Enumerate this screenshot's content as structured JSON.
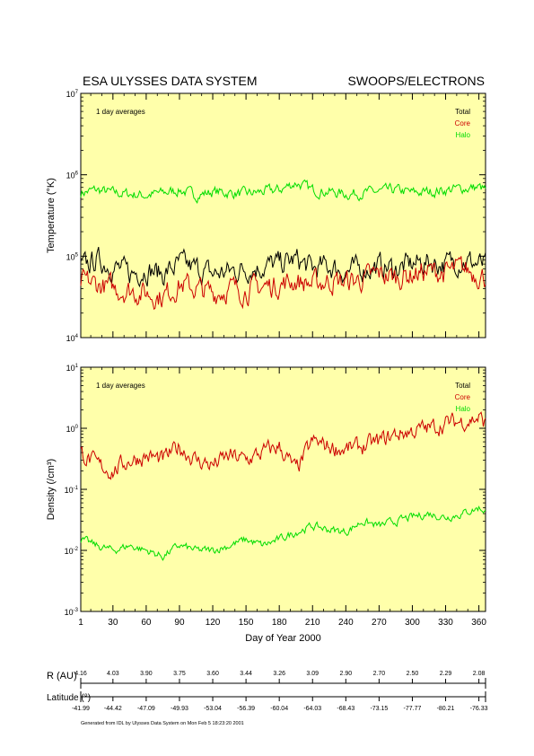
{
  "header": {
    "left": "ESA ULYSSES DATA SYSTEM",
    "right": "SWOOPS/ELECTRONS"
  },
  "chart_data": [
    {
      "type": "line",
      "annotation": "1 day averages",
      "ylabel": "Temperature (°K)",
      "xlabel": "",
      "yscale": "log",
      "ylim": [
        10000,
        10000000
      ],
      "yticks": [
        {
          "base": "10",
          "exp": "4"
        },
        {
          "base": "10",
          "exp": "5"
        },
        {
          "base": "10",
          "exp": "6"
        },
        {
          "base": "10",
          "exp": "7"
        }
      ],
      "xlim": [
        1,
        366
      ],
      "legend": [
        "Total",
        "Core",
        "Halo"
      ],
      "legend_position": "top-right",
      "colors": {
        "Total": "#000000",
        "Core": "#cc0000",
        "Halo": "#00dd00"
      },
      "x": [
        1,
        15,
        30,
        45,
        60,
        75,
        90,
        105,
        120,
        135,
        150,
        165,
        180,
        195,
        210,
        225,
        240,
        255,
        270,
        285,
        300,
        315,
        330,
        345,
        360,
        366
      ],
      "series": [
        {
          "name": "Total",
          "values": [
            70000,
            90000,
            75000,
            60000,
            70000,
            60000,
            80000,
            70000,
            60000,
            65000,
            70000,
            75000,
            80000,
            90000,
            70000,
            75000,
            65000,
            70000,
            75000,
            70000,
            80000,
            85000,
            80000,
            90000,
            80000,
            75000
          ]
        },
        {
          "name": "Core",
          "values": [
            50000,
            45000,
            40000,
            38000,
            35000,
            32000,
            45000,
            40000,
            35000,
            40000,
            38000,
            42000,
            45000,
            50000,
            45000,
            50000,
            48000,
            52000,
            60000,
            55000,
            60000,
            65000,
            62000,
            70000,
            60000,
            55000
          ]
        },
        {
          "name": "Halo",
          "values": [
            600000,
            650000,
            600000,
            580000,
            560000,
            600000,
            650000,
            560000,
            620000,
            600000,
            580000,
            620000,
            650000,
            800000,
            650000,
            620000,
            580000,
            600000,
            620000,
            650000,
            600000,
            620000,
            650000,
            680000,
            700000,
            650000
          ]
        }
      ]
    },
    {
      "type": "line",
      "annotation": "1 day averages",
      "ylabel": "Density (/cm³)",
      "xlabel": "Day of Year 2000",
      "yscale": "log",
      "ylim": [
        0.001,
        10
      ],
      "yticks": [
        {
          "base": "10",
          "exp": "-3"
        },
        {
          "base": "10",
          "exp": "-2"
        },
        {
          "base": "10",
          "exp": "-1"
        },
        {
          "base": "10",
          "exp": "0"
        },
        {
          "base": "10",
          "exp": "1"
        }
      ],
      "xlim": [
        1,
        366
      ],
      "xticks": [
        "1",
        "30",
        "60",
        "90",
        "120",
        "150",
        "180",
        "210",
        "240",
        "270",
        "300",
        "330",
        "360"
      ],
      "legend": [
        "Total",
        "Core",
        "Halo"
      ],
      "legend_position": "top-right",
      "colors": {
        "Total": "#000000",
        "Core": "#cc0000",
        "Halo": "#00dd00"
      },
      "x": [
        1,
        15,
        30,
        45,
        60,
        75,
        90,
        105,
        120,
        135,
        150,
        165,
        180,
        195,
        210,
        225,
        240,
        255,
        270,
        285,
        300,
        315,
        330,
        345,
        360,
        366
      ],
      "series": [
        {
          "name": "Core",
          "values": [
            0.4,
            0.25,
            0.2,
            0.3,
            0.35,
            0.3,
            0.5,
            0.3,
            0.25,
            0.35,
            0.3,
            0.4,
            0.5,
            0.2,
            0.6,
            0.5,
            0.45,
            0.5,
            0.6,
            0.8,
            0.9,
            1.0,
            1.2,
            1.3,
            1.5,
            1.2
          ]
        },
        {
          "name": "Halo",
          "values": [
            0.015,
            0.012,
            0.01,
            0.012,
            0.01,
            0.008,
            0.012,
            0.01,
            0.01,
            0.012,
            0.015,
            0.012,
            0.015,
            0.02,
            0.025,
            0.022,
            0.02,
            0.03,
            0.025,
            0.03,
            0.035,
            0.04,
            0.035,
            0.04,
            0.05,
            0.045
          ]
        }
      ]
    }
  ],
  "x_axis": {
    "label": "Day of Year 2000",
    "ticks": [
      "1",
      "30",
      "60",
      "90",
      "120",
      "150",
      "180",
      "210",
      "240",
      "270",
      "300",
      "330",
      "360"
    ]
  },
  "ephemeris": {
    "r_label": "R (AU)",
    "r_values": [
      "4.16",
      "4.03",
      "3.90",
      "3.75",
      "3.60",
      "3.44",
      "3.26",
      "3.09",
      "2.90",
      "2.70",
      "2.50",
      "2.29",
      "2.08"
    ],
    "lat_label": "Latitude (°)",
    "lat_values": [
      "-41.99",
      "-44.42",
      "-47.09",
      "-49.93",
      "-53.04",
      "-56.39",
      "-60.04",
      "-64.03",
      "-68.43",
      "-73.15",
      "-77.77",
      "-80.21",
      "-76.33"
    ]
  },
  "footer": "Generated from IDL by Ulysses Data System on Mon Feb  5 18:23:20 2001"
}
